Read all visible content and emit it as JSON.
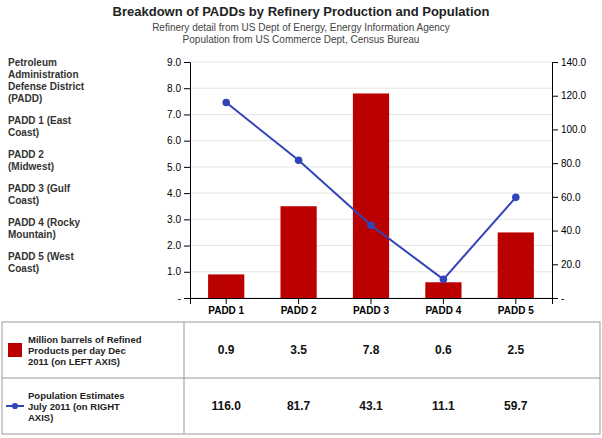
{
  "chart_data": {
    "type": "bar",
    "title": "Breakdown of PADDs by Refinery Production and Population",
    "subtitle": [
      "Refinery detail from US Dept of Energy, Energy Information Agency",
      "Population from US Commerce Dept, Census Bureau"
    ],
    "annotations": [
      "Petroleum\nAdministration\nDefense District\n(PADD)",
      "PADD 1 (East\nCoast)",
      "PADD 2\n(Midwest)",
      "PADD 3 (Gulf\nCoast)",
      "PADD 4 (Rocky\nMountain)",
      "PADD 5 (West\nCoast)"
    ],
    "categories": [
      "PADD 1",
      "PADD 2",
      "PADD 3",
      "PADD 4",
      "PADD 5"
    ],
    "series": [
      {
        "name": "Million barrels of Refined\nProducts per day Dec\n2011 (on LEFT AXIS)",
        "type": "bar",
        "color": "#bb0000",
        "values": [
          0.9,
          3.5,
          7.8,
          0.6,
          2.5
        ]
      },
      {
        "name": "Population Estimates\nJuly 2011 (on RIGHT\nAXIS)",
        "type": "line",
        "axis": "y2",
        "color": "#3344bb",
        "marker": "circle",
        "values": [
          116.0,
          81.7,
          43.1,
          11.1,
          59.7
        ],
        "value_labels": [
          "116.0",
          "81.7",
          "43.1",
          "11.1",
          "59.7"
        ]
      }
    ],
    "ylim": [
      0,
      9
    ],
    "yticks": [
      {
        "value": 0,
        "label": "-"
      },
      {
        "value": 1,
        "label": "1.0"
      },
      {
        "value": 2,
        "label": "2.0"
      },
      {
        "value": 3,
        "label": "3.0"
      },
      {
        "value": 4,
        "label": "4.0"
      },
      {
        "value": 5,
        "label": "5.0"
      },
      {
        "value": 6,
        "label": "6.0"
      },
      {
        "value": 7,
        "label": "7.0"
      },
      {
        "value": 8,
        "label": "8.0"
      },
      {
        "value": 9,
        "label": "9.0"
      }
    ],
    "y2lim": [
      0,
      140
    ],
    "y2ticks": [
      {
        "value": 0,
        "label": "-"
      },
      {
        "value": 20,
        "label": "20.0"
      },
      {
        "value": 40,
        "label": "40.0"
      },
      {
        "value": 60,
        "label": "60.0"
      },
      {
        "value": 80,
        "label": "80.0"
      },
      {
        "value": 100,
        "label": "100.0"
      },
      {
        "value": 120,
        "label": "120.0"
      },
      {
        "value": 140,
        "label": "140.0"
      }
    ],
    "grid": true,
    "data_labels": true
  }
}
